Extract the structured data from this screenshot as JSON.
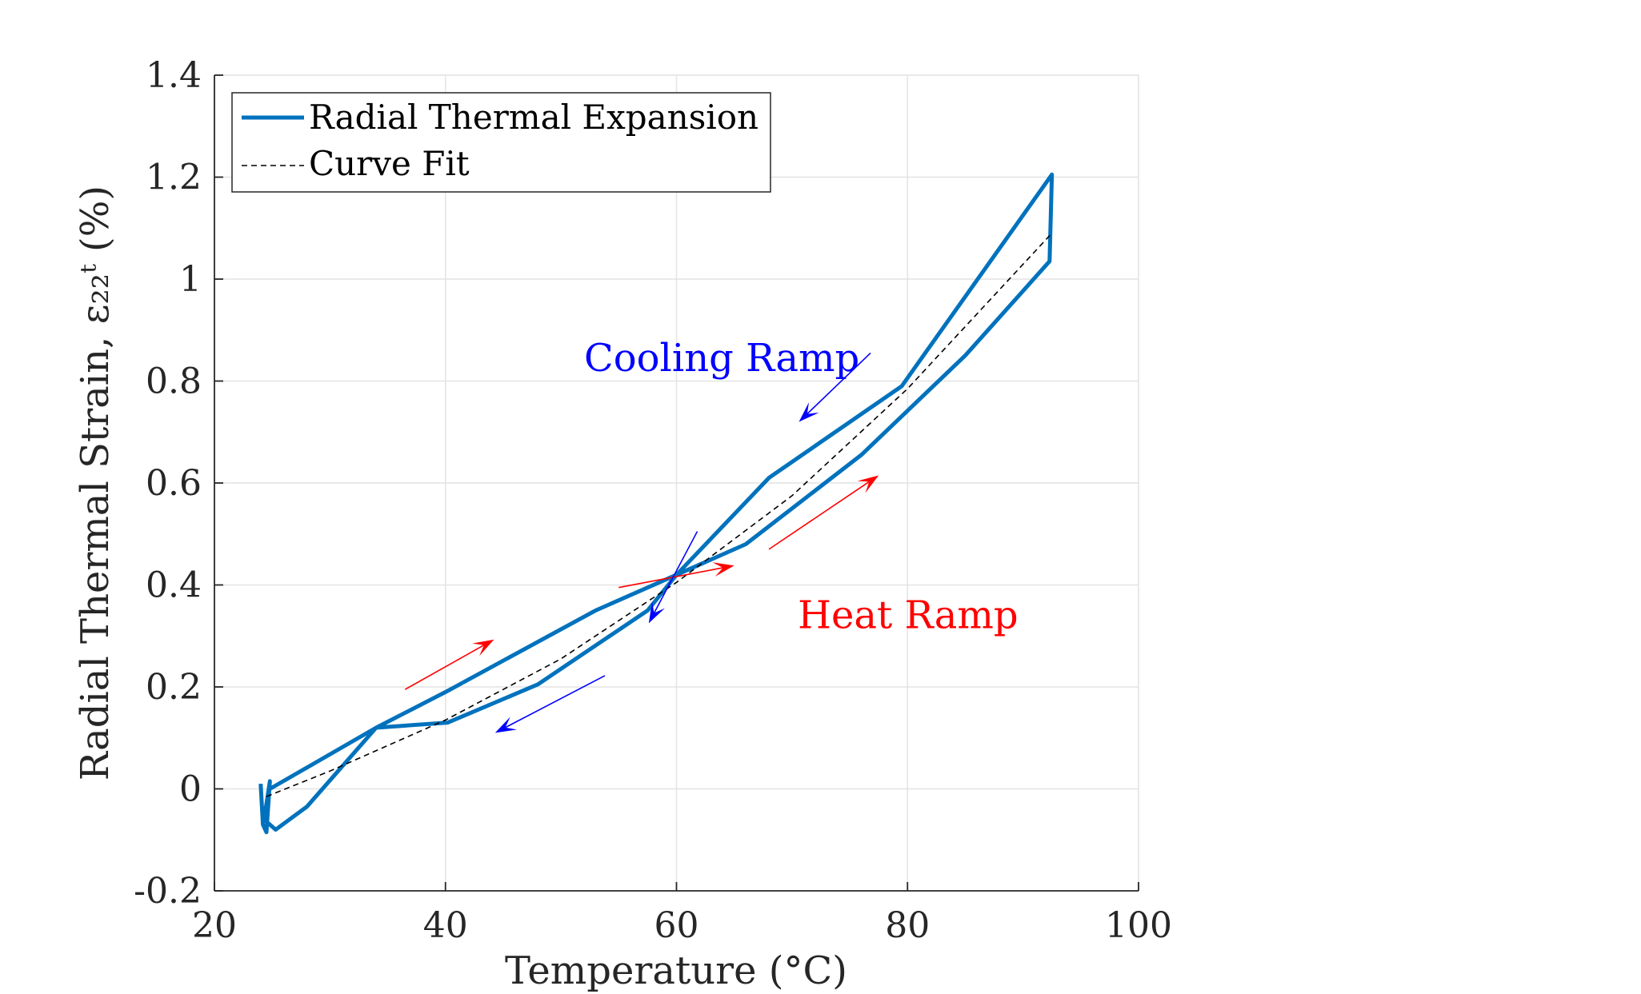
{
  "chart_data": {
    "type": "line",
    "title": "",
    "xlabel": "Temperature (°C)",
    "ylabel": "Radial Thermal Strain, ε₂₂ᵗ (%)",
    "xlim": [
      20,
      100
    ],
    "ylim": [
      -0.2,
      1.4
    ],
    "x_ticks": [
      20,
      40,
      60,
      80,
      100
    ],
    "x_tick_labels": [
      "20",
      "40",
      "60",
      "80",
      "100"
    ],
    "y_ticks": [
      -0.2,
      0,
      0.2,
      0.4,
      0.6,
      0.8,
      1.0,
      1.2,
      1.4
    ],
    "y_tick_labels": [
      "-0.2",
      "0",
      "0.2",
      "0.4",
      "0.6",
      "0.8",
      "1",
      "1.2",
      "1.4"
    ],
    "grid": true,
    "legend_position": "top-left",
    "series": [
      {
        "name": "Radial Thermal Expansion",
        "color": "#0072BD",
        "style": "solid",
        "x": [
          24.0,
          24.2,
          24.5,
          24.8,
          24.3,
          25.3,
          28.0,
          34.0,
          40.2,
          48.0,
          57.5,
          60.0,
          66.0,
          76.0,
          85.0,
          92.3,
          92.5,
          79.5,
          68.0,
          60.0,
          53.0,
          40.0,
          34.0,
          24.8
        ],
        "y": [
          0.01,
          -0.07,
          -0.085,
          0.015,
          -0.06,
          -0.08,
          -0.035,
          0.12,
          0.13,
          0.205,
          0.35,
          0.42,
          0.48,
          0.655,
          0.85,
          1.035,
          1.205,
          0.79,
          0.61,
          0.42,
          0.35,
          0.19,
          0.12,
          0.0
        ]
      },
      {
        "name": "Curve Fit",
        "color": "#000000",
        "style": "dashed",
        "x": [
          24.5,
          30,
          40,
          50,
          60,
          70,
          80,
          92.5
        ],
        "y": [
          -0.015,
          0.035,
          0.135,
          0.255,
          0.405,
          0.575,
          0.785,
          1.09
        ]
      }
    ],
    "annotations": [
      {
        "text": "Cooling Ramp",
        "color": "#0000FF",
        "x": 52,
        "y": 0.82
      },
      {
        "text": "Heat Ramp",
        "color": "#FF0000",
        "x": 70.5,
        "y": 0.315
      }
    ],
    "arrows": [
      {
        "color": "#FF0000",
        "from": [
          36.5,
          0.195
        ],
        "to": [
          44.2,
          0.293
        ]
      },
      {
        "color": "#FF0000",
        "from": [
          55.0,
          0.395
        ],
        "to": [
          65.0,
          0.438
        ]
      },
      {
        "color": "#FF0000",
        "from": [
          68.0,
          0.47
        ],
        "to": [
          77.5,
          0.615
        ]
      },
      {
        "color": "#0000FF",
        "from": [
          53.8,
          0.222
        ],
        "to": [
          44.3,
          0.11
        ]
      },
      {
        "color": "#0000FF",
        "from": [
          61.8,
          0.505
        ],
        "to": [
          57.6,
          0.325
        ]
      },
      {
        "color": "#0000FF",
        "from": [
          76.8,
          0.855
        ],
        "to": [
          70.6,
          0.72
        ]
      }
    ]
  }
}
